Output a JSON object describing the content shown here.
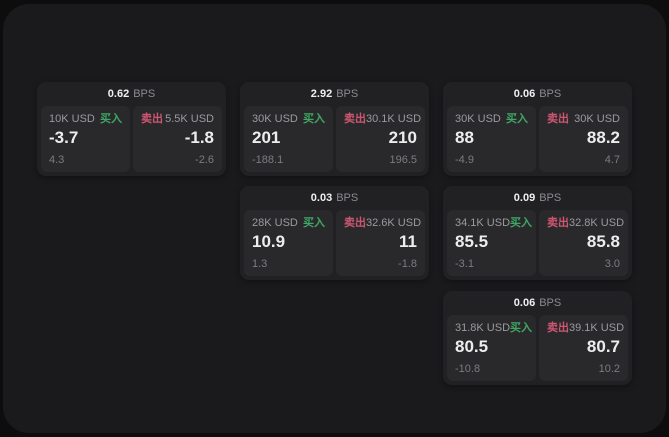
{
  "labels": {
    "bps_unit": "BPS",
    "buy": "买入",
    "sell": "卖出"
  },
  "colors": {
    "buy": "#3fa763",
    "sell": "#cd5670",
    "panel_bg": "#1a1a1d",
    "card_bg": "#212124",
    "tile_bg": "#29292c"
  },
  "cards": [
    {
      "bps": "0.62",
      "buy": {
        "amount": "10K USD",
        "value": "-3.7",
        "delta": "4.3"
      },
      "sell": {
        "amount": "5.5K USD",
        "value": "-1.8",
        "delta": "-2.6"
      }
    },
    {
      "bps": "2.92",
      "buy": {
        "amount": "30K USD",
        "value": "201",
        "delta": "-188.1"
      },
      "sell": {
        "amount": "30.1K USD",
        "value": "210",
        "delta": "196.5"
      }
    },
    {
      "bps": "0.03",
      "buy": {
        "amount": "28K USD",
        "value": "10.9",
        "delta": "1.3"
      },
      "sell": {
        "amount": "32.6K USD",
        "value": "11",
        "delta": "-1.8"
      }
    },
    {
      "bps": "0.06",
      "buy": {
        "amount": "30K USD",
        "value": "88",
        "delta": "-4.9"
      },
      "sell": {
        "amount": "30K USD",
        "value": "88.2",
        "delta": "4.7"
      }
    },
    {
      "bps": "0.09",
      "buy": {
        "amount": "34.1K USD",
        "value": "85.5",
        "delta": "-3.1"
      },
      "sell": {
        "amount": "32.8K USD",
        "value": "85.8",
        "delta": "3.0"
      }
    },
    {
      "bps": "0.06",
      "buy": {
        "amount": "31.8K USD",
        "value": "80.5",
        "delta": "-10.8"
      },
      "sell": {
        "amount": "39.1K USD",
        "value": "80.7",
        "delta": "10.2"
      }
    }
  ]
}
